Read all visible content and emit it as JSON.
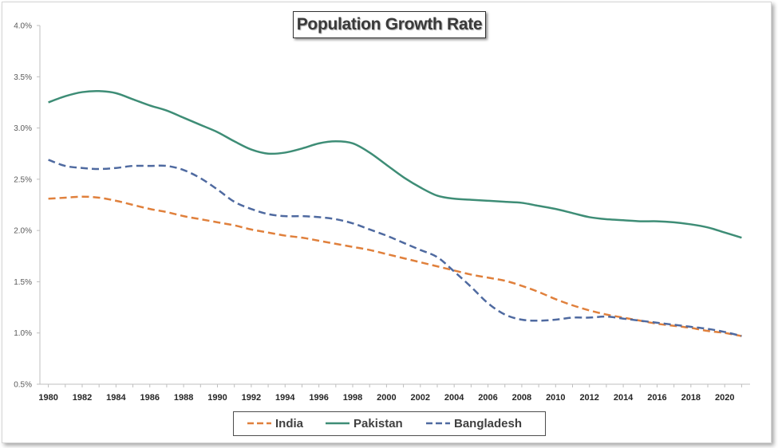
{
  "chart_data": {
    "type": "line",
    "title": "Population Growth Rate",
    "xlabel": "",
    "ylabel": "",
    "ylim": [
      0.5,
      4.0
    ],
    "y_ticks": [
      "0.5%",
      "1.0%",
      "1.5%",
      "2.0%",
      "2.5%",
      "3.0%",
      "3.5%",
      "4.0%"
    ],
    "x_tick_labels": [
      "1980",
      "1982",
      "1984",
      "1986",
      "1988",
      "1990",
      "1992",
      "1994",
      "1996",
      "1998",
      "2000",
      "2002",
      "2004",
      "2006",
      "2008",
      "2010",
      "2012",
      "2014",
      "2016",
      "2018",
      "2020"
    ],
    "x": [
      1980,
      1981,
      1982,
      1983,
      1984,
      1985,
      1986,
      1987,
      1988,
      1989,
      1990,
      1991,
      1992,
      1993,
      1994,
      1995,
      1996,
      1997,
      1998,
      1999,
      2000,
      2001,
      2002,
      2003,
      2004,
      2005,
      2006,
      2007,
      2008,
      2009,
      2010,
      2011,
      2012,
      2013,
      2014,
      2015,
      2016,
      2017,
      2018,
      2019,
      2020,
      2021
    ],
    "legend_position": "bottom",
    "grid": false,
    "series": [
      {
        "name": "India",
        "color": "#E0803C",
        "dash": "dashed",
        "values": [
          2.31,
          2.32,
          2.33,
          2.32,
          2.29,
          2.25,
          2.21,
          2.18,
          2.14,
          2.11,
          2.08,
          2.05,
          2.01,
          1.98,
          1.95,
          1.93,
          1.9,
          1.87,
          1.84,
          1.81,
          1.77,
          1.73,
          1.69,
          1.65,
          1.61,
          1.57,
          1.54,
          1.51,
          1.46,
          1.4,
          1.33,
          1.27,
          1.22,
          1.18,
          1.15,
          1.12,
          1.09,
          1.07,
          1.05,
          1.02,
          1.0,
          0.97
        ]
      },
      {
        "name": "Pakistan",
        "color": "#3E8D76",
        "dash": "solid",
        "values": [
          3.25,
          3.31,
          3.35,
          3.36,
          3.34,
          3.28,
          3.22,
          3.17,
          3.1,
          3.03,
          2.96,
          2.87,
          2.79,
          2.75,
          2.76,
          2.8,
          2.85,
          2.87,
          2.85,
          2.76,
          2.64,
          2.52,
          2.42,
          2.34,
          2.31,
          2.3,
          2.29,
          2.28,
          2.27,
          2.24,
          2.21,
          2.17,
          2.13,
          2.11,
          2.1,
          2.09,
          2.09,
          2.08,
          2.06,
          2.03,
          1.98,
          1.93
        ]
      },
      {
        "name": "Bangladesh",
        "color": "#4F6AA0",
        "dash": "dashed",
        "values": [
          2.69,
          2.63,
          2.61,
          2.6,
          2.61,
          2.63,
          2.63,
          2.63,
          2.59,
          2.51,
          2.4,
          2.28,
          2.21,
          2.16,
          2.14,
          2.14,
          2.13,
          2.11,
          2.07,
          2.01,
          1.95,
          1.88,
          1.81,
          1.74,
          1.6,
          1.45,
          1.29,
          1.18,
          1.13,
          1.12,
          1.13,
          1.15,
          1.15,
          1.16,
          1.14,
          1.12,
          1.1,
          1.08,
          1.06,
          1.04,
          1.01,
          0.97
        ]
      }
    ]
  }
}
